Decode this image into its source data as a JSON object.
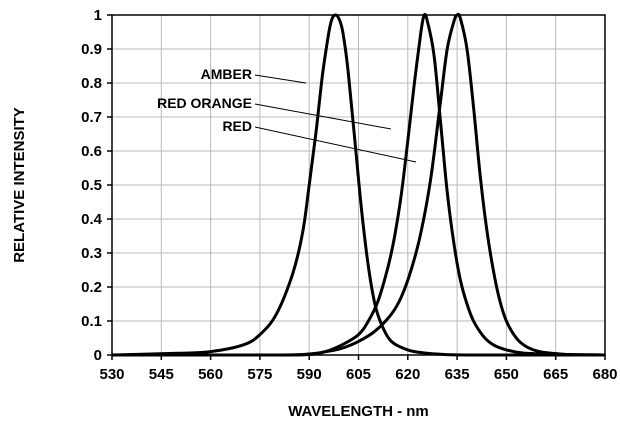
{
  "chart_data": {
    "type": "line",
    "xlabel": "WAVELENGTH - nm",
    "ylabel": "RELATIVE INTENSITY",
    "xlim": [
      530,
      680
    ],
    "ylim": [
      0,
      1
    ],
    "xticks": [
      530,
      545,
      560,
      575,
      590,
      605,
      620,
      635,
      650,
      665,
      680
    ],
    "yticks": [
      0,
      0.1,
      0.2,
      0.3,
      0.4,
      0.5,
      0.6,
      0.7,
      0.8,
      0.9,
      1
    ],
    "ytick_labels": [
      "0",
      "0.1",
      "0.2",
      "0.3",
      "0.4",
      "0.5",
      "0.6",
      "0.7",
      "0.8",
      "0.9",
      "1"
    ],
    "grid": true,
    "series": [
      {
        "name": "AMBER",
        "x": [
          530,
          550,
          560,
          570,
          575,
          580,
          585,
          588,
          590,
          592,
          594,
          596,
          597,
          598,
          599,
          600,
          601,
          602,
          604,
          606,
          608,
          610,
          612,
          615,
          620,
          625,
          630,
          640,
          680
        ],
        "y": [
          0,
          0.005,
          0.01,
          0.03,
          0.06,
          0.12,
          0.24,
          0.36,
          0.5,
          0.65,
          0.82,
          0.95,
          0.99,
          1.0,
          0.99,
          0.96,
          0.9,
          0.82,
          0.62,
          0.42,
          0.26,
          0.15,
          0.09,
          0.04,
          0.015,
          0.006,
          0.002,
          0,
          0
        ]
      },
      {
        "name": "RED ORANGE",
        "x": [
          530,
          580,
          590,
          595,
          600,
          605,
          608,
          611,
          614,
          616,
          618,
          620,
          622,
          624,
          625,
          626,
          628,
          630,
          632,
          634,
          636,
          638,
          640,
          643,
          646,
          650,
          655,
          665,
          680
        ],
        "y": [
          0,
          0,
          0.003,
          0.01,
          0.03,
          0.06,
          0.1,
          0.16,
          0.26,
          0.35,
          0.47,
          0.63,
          0.8,
          0.95,
          1.0,
          0.98,
          0.88,
          0.68,
          0.48,
          0.33,
          0.22,
          0.15,
          0.1,
          0.055,
          0.03,
          0.015,
          0.006,
          0.002,
          0
        ]
      },
      {
        "name": "RED",
        "x": [
          530,
          585,
          595,
          600,
          605,
          610,
          615,
          618,
          621,
          624,
          627,
          630,
          632,
          634,
          635,
          636,
          638,
          640,
          642,
          644,
          646,
          648,
          650,
          653,
          656,
          660,
          665,
          670,
          680
        ],
        "y": [
          0,
          0,
          0.01,
          0.02,
          0.04,
          0.07,
          0.12,
          0.17,
          0.25,
          0.36,
          0.52,
          0.75,
          0.9,
          0.98,
          1.0,
          0.99,
          0.9,
          0.73,
          0.53,
          0.37,
          0.25,
          0.16,
          0.1,
          0.05,
          0.025,
          0.01,
          0.004,
          0.001,
          0
        ]
      }
    ],
    "annotations": [
      {
        "text": "AMBER",
        "series": "AMBER"
      },
      {
        "text": "RED ORANGE",
        "series": "RED ORANGE"
      },
      {
        "text": "RED",
        "series": "RED"
      }
    ]
  }
}
